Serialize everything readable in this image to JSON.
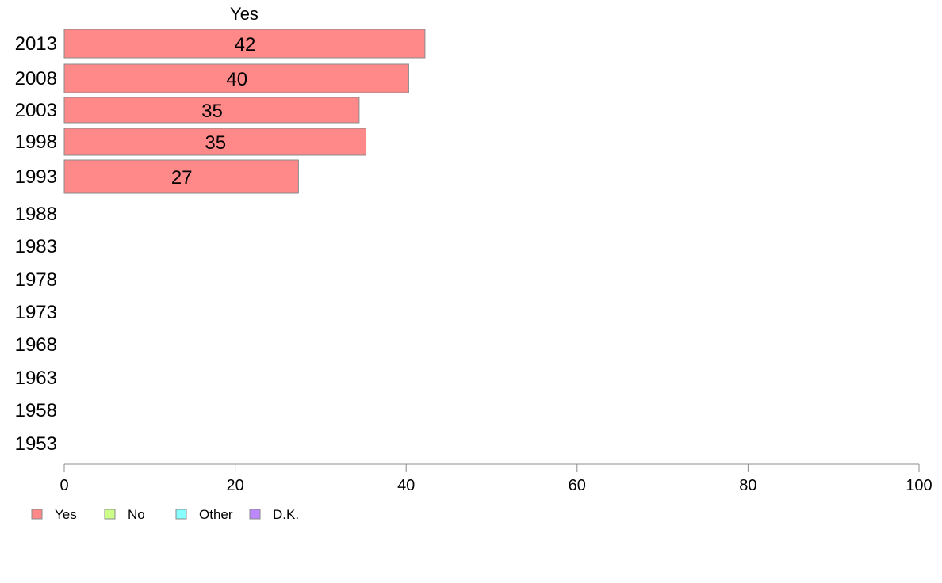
{
  "chart_data": {
    "type": "bar",
    "orientation": "horizontal",
    "categories": [
      "2013",
      "2008",
      "2003",
      "1998",
      "1993",
      "1988",
      "1983",
      "1978",
      "1973",
      "1968",
      "1963",
      "1958",
      "1953"
    ],
    "series": [
      {
        "name": "Yes",
        "values": [
          42.2,
          40.3,
          34.5,
          35.3,
          27.4,
          null,
          null,
          null,
          null,
          null,
          null,
          null,
          null
        ],
        "labels": [
          "42",
          "40",
          "35",
          "35",
          "27",
          "",
          "",
          "",
          "",
          "",
          "",
          "",
          ""
        ],
        "color": "#ff8888"
      }
    ],
    "series_title": "Yes",
    "xlim": [
      0,
      100
    ],
    "xticks": [
      "0",
      "20",
      "40",
      "60",
      "80",
      "100"
    ],
    "title": "",
    "xlabel": "",
    "ylabel": "",
    "grid": false,
    "legend": {
      "placement": "bottom-left",
      "entries": [
        {
          "label": "Yes",
          "color": "#ff8888"
        },
        {
          "label": "No",
          "color": "#ccff88"
        },
        {
          "label": "Other",
          "color": "#88ffff"
        },
        {
          "label": "D.K.",
          "color": "#bb88ff"
        }
      ]
    }
  }
}
